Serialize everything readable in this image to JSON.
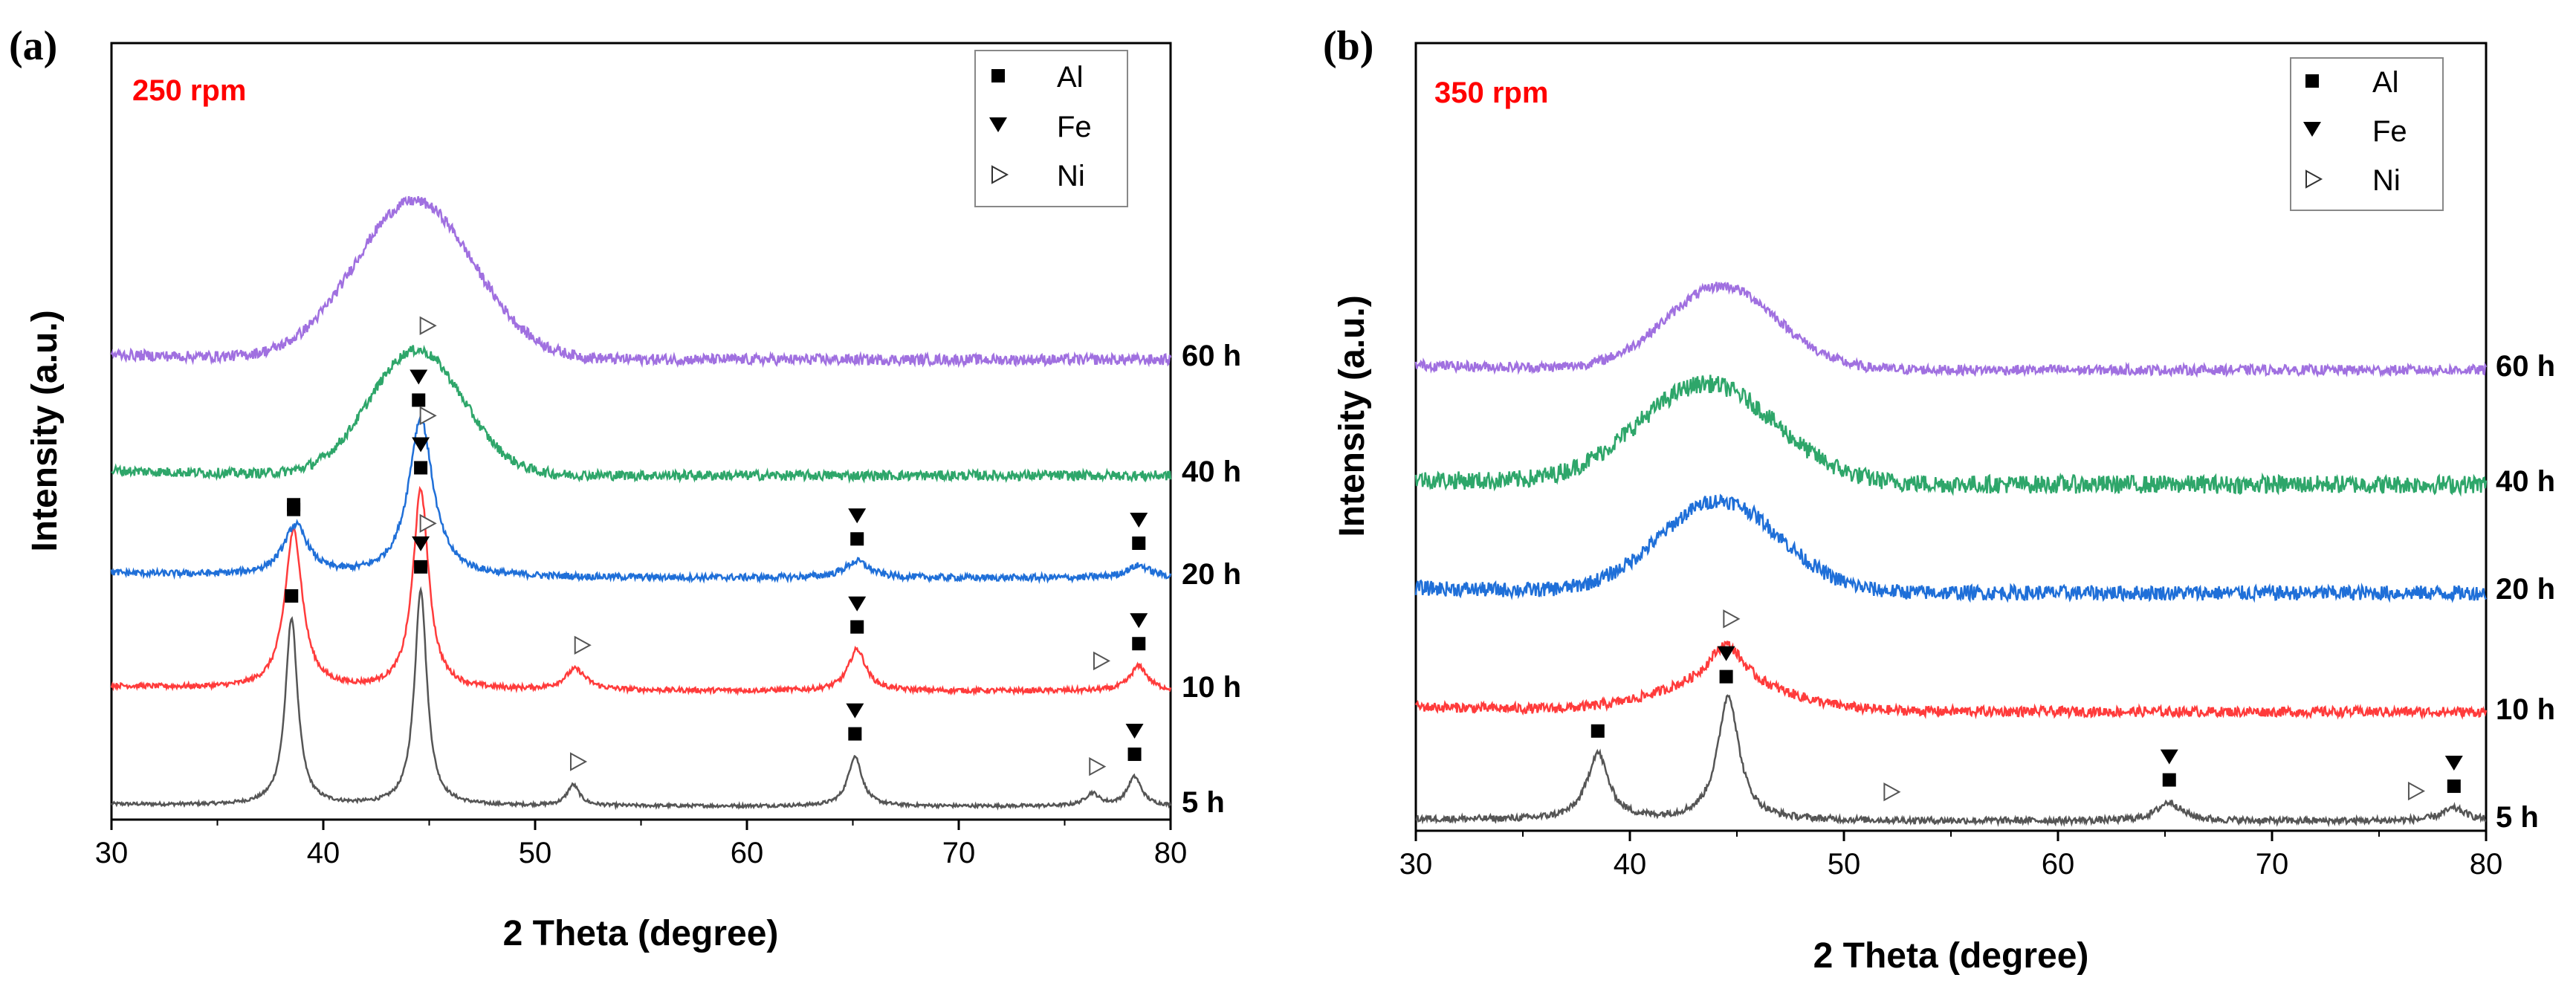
{
  "chart_data": [
    {
      "panel": "(a)",
      "type": "line",
      "title": "250 rpm",
      "xlabel": "2 Theta (degree)",
      "ylabel": "Intensity (a.u.)",
      "xlim": [
        30,
        80
      ],
      "xticks": [
        "30",
        "40",
        "50",
        "60",
        "70",
        "80"
      ],
      "legend": [
        {
          "symbol": "square",
          "label": "Al"
        },
        {
          "symbol": "triangle-down",
          "label": "Fe"
        },
        {
          "symbol": "triangle-right-open",
          "label": "Ni"
        }
      ],
      "series": [
        {
          "name": "5 h",
          "color": "#555555",
          "noise": 0.004,
          "peaks": [
            [
              38.5,
              0.45,
              0.35
            ],
            [
              44.6,
              0.52,
              0.35
            ],
            [
              51.8,
              0.05,
              0.35
            ],
            [
              65.1,
              0.12,
              0.4
            ],
            [
              76.3,
              0.03,
              0.4
            ],
            [
              78.3,
              0.07,
              0.4
            ]
          ],
          "humps": []
        },
        {
          "name": "10 h",
          "color": "#ff3b3b",
          "noise": 0.006,
          "peaks": [
            [
              38.6,
              0.38,
              0.5
            ],
            [
              44.6,
              0.48,
              0.45
            ],
            [
              51.9,
              0.05,
              0.6
            ],
            [
              65.2,
              0.1,
              0.5
            ],
            [
              78.5,
              0.06,
              0.5
            ]
          ],
          "humps": []
        },
        {
          "name": "20 h",
          "color": "#1f6fd8",
          "noise": 0.008,
          "peaks": [
            [
              38.7,
              0.12,
              0.7
            ],
            [
              44.6,
              0.38,
              0.7
            ],
            [
              65.2,
              0.04,
              0.7
            ],
            [
              78.5,
              0.03,
              0.7
            ]
          ],
          "humps": []
        },
        {
          "name": "40 h",
          "color": "#2ea66a",
          "noise": 0.012,
          "peaks": [],
          "humps": [
            [
              44.4,
              0.3,
              2.2
            ]
          ]
        },
        {
          "name": "60 h",
          "color": "#a070e0",
          "noise": 0.013,
          "peaks": [],
          "humps": [
            [
              44.3,
              0.38,
              2.8
            ]
          ]
        }
      ],
      "markers": [
        {
          "series": "5 h",
          "items": [
            {
              "sym": "Al",
              "x": 38.5
            },
            {
              "sym": "Al",
              "x": 44.6
            },
            {
              "sym": "Fe",
              "x": 44.6
            },
            {
              "sym": "Ni",
              "x": 52.0
            },
            {
              "sym": "Al",
              "x": 65.1
            },
            {
              "sym": "Fe",
              "x": 65.1
            },
            {
              "sym": "Ni",
              "x": 76.5
            },
            {
              "sym": "Al",
              "x": 78.3
            },
            {
              "sym": "Fe",
              "x": 78.3
            }
          ]
        },
        {
          "series": "10 h",
          "items": [
            {
              "sym": "Al",
              "x": 38.6
            },
            {
              "sym": "Al",
              "x": 44.6
            },
            {
              "sym": "Fe",
              "x": 44.6
            },
            {
              "sym": "Ni",
              "x": 44.9
            },
            {
              "sym": "Ni",
              "x": 52.2
            },
            {
              "sym": "Al",
              "x": 65.2
            },
            {
              "sym": "Fe",
              "x": 65.2
            },
            {
              "sym": "Ni",
              "x": 76.7
            },
            {
              "sym": "Al",
              "x": 78.5
            },
            {
              "sym": "Fe",
              "x": 78.5
            }
          ]
        },
        {
          "series": "20 h",
          "items": [
            {
              "sym": "Al",
              "x": 38.6
            },
            {
              "sym": "Al",
              "x": 44.5
            },
            {
              "sym": "Fe",
              "x": 44.5
            },
            {
              "sym": "Ni",
              "x": 44.9
            },
            {
              "sym": "Al",
              "x": 65.2
            },
            {
              "sym": "Fe",
              "x": 65.2
            },
            {
              "sym": "Al",
              "x": 78.5
            },
            {
              "sym": "Fe",
              "x": 78.5
            }
          ]
        },
        {
          "series": "40 h",
          "items": [
            {
              "sym": "Ni",
              "x": 44.9
            }
          ]
        }
      ]
    },
    {
      "panel": "(b)",
      "type": "line",
      "title": "350 rpm",
      "xlabel": "2 Theta (degree)",
      "ylabel": "Intensity (a.u.)",
      "xlim": [
        30,
        80
      ],
      "xticks": [
        "30",
        "40",
        "50",
        "60",
        "70",
        "80"
      ],
      "legend": [
        {
          "symbol": "square",
          "label": "Al"
        },
        {
          "symbol": "triangle-down",
          "label": "Fe"
        },
        {
          "symbol": "triangle-right-open",
          "label": "Ni"
        }
      ],
      "series": [
        {
          "name": "5 h",
          "color": "#555555",
          "noise": 0.008,
          "peaks": [
            [
              38.5,
              0.16,
              0.6
            ],
            [
              44.6,
              0.3,
              0.6
            ],
            [
              65.2,
              0.045,
              0.7
            ],
            [
              78.5,
              0.03,
              0.7
            ]
          ],
          "humps": []
        },
        {
          "name": "10 h",
          "color": "#ff3b3b",
          "noise": 0.012,
          "peaks": [
            [
              44.5,
              0.1,
              1.0
            ]
          ],
          "humps": [
            [
              44.3,
              0.06,
              3.0
            ]
          ]
        },
        {
          "name": "20 h",
          "color": "#1f6fd8",
          "noise": 0.018,
          "peaks": [],
          "humps": [
            [
              44.2,
              0.22,
              2.8
            ]
          ]
        },
        {
          "name": "40 h",
          "color": "#2ea66a",
          "noise": 0.022,
          "peaks": [],
          "humps": [
            [
              43.6,
              0.24,
              3.2
            ]
          ]
        },
        {
          "name": "60 h",
          "color": "#a070e0",
          "noise": 0.012,
          "peaks": [],
          "humps": [
            [
              44.3,
              0.2,
              2.6
            ]
          ]
        }
      ],
      "markers": [
        {
          "series": "5 h",
          "items": [
            {
              "sym": "Al",
              "x": 38.5
            },
            {
              "sym": "Al",
              "x": 44.5
            },
            {
              "sym": "Fe",
              "x": 44.5
            },
            {
              "sym": "Ni",
              "x": 52.2
            },
            {
              "sym": "Al",
              "x": 65.2
            },
            {
              "sym": "Fe",
              "x": 65.2
            },
            {
              "sym": "Ni",
              "x": 76.7
            },
            {
              "sym": "Al",
              "x": 78.5
            },
            {
              "sym": "Fe",
              "x": 78.5
            }
          ]
        },
        {
          "series": "10 h",
          "items": [
            {
              "sym": "Ni",
              "x": 44.7
            }
          ]
        }
      ]
    }
  ]
}
